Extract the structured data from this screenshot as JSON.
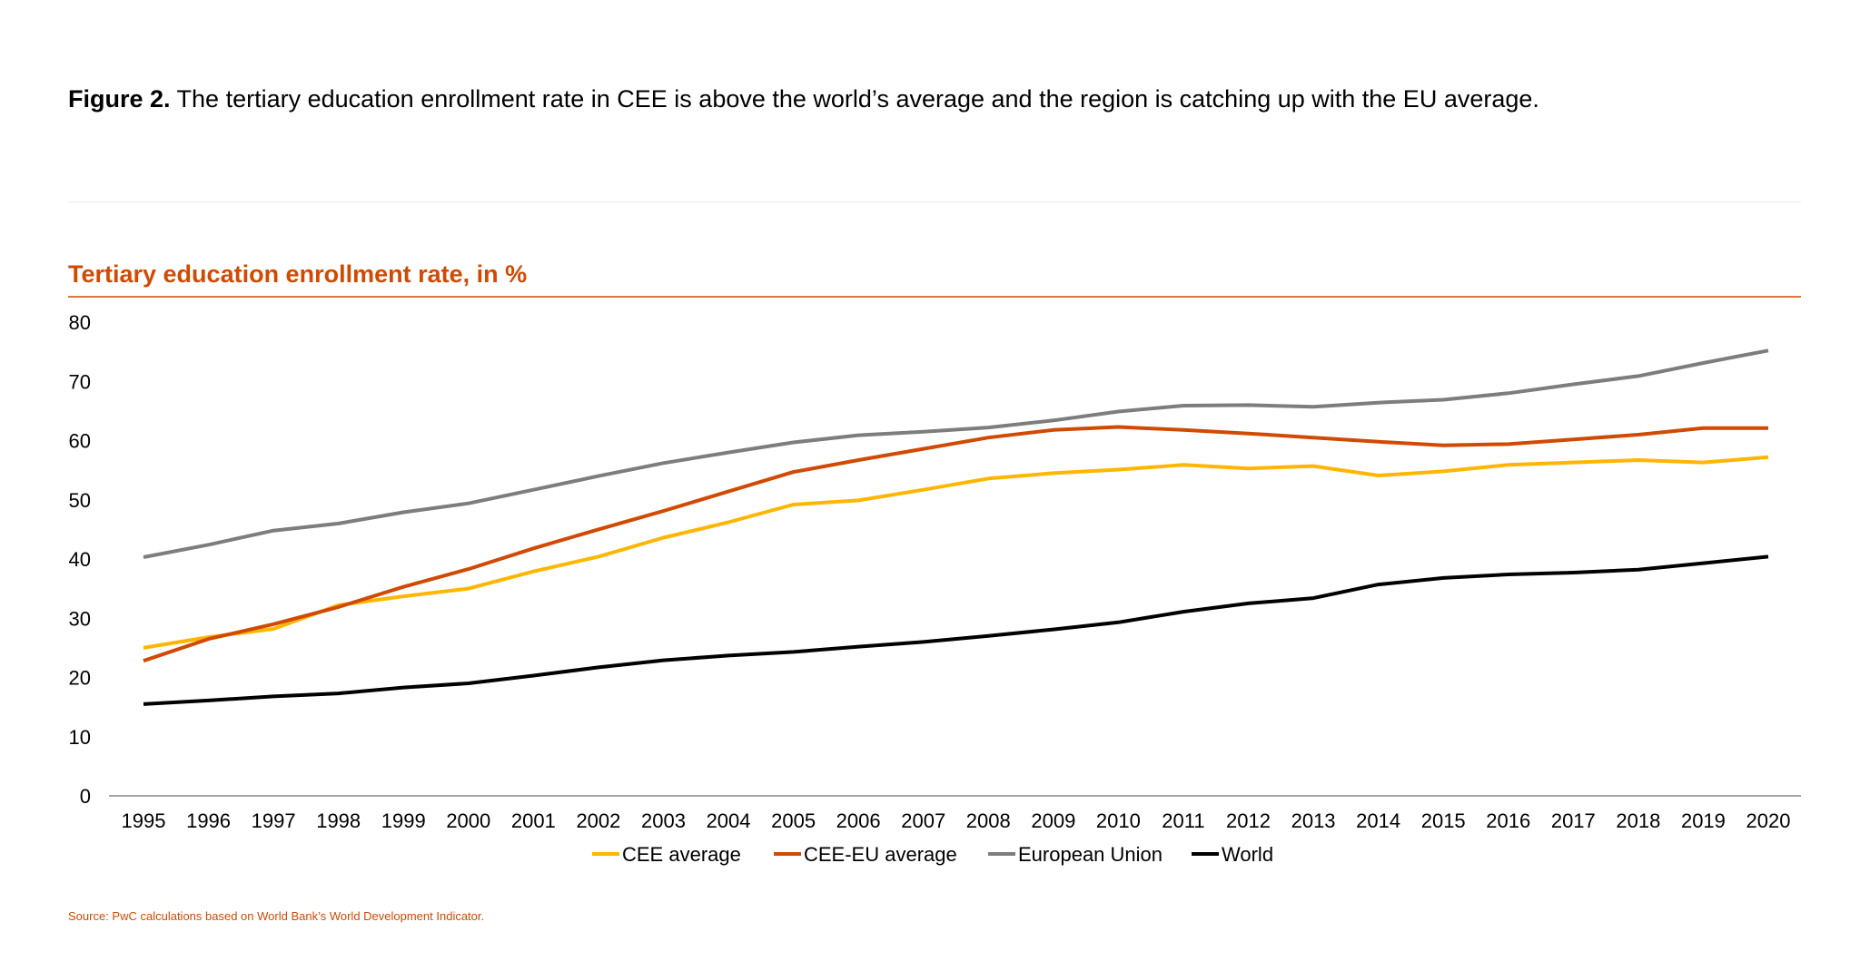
{
  "figure": {
    "label": "Figure 2.",
    "caption": "The tertiary education enrollment rate in CEE is above the world’s average and the region is catching up with the EU average."
  },
  "source": "Source: PwC calculations based on World Bank’s World Development Indicator.",
  "chart_data": {
    "type": "line",
    "title": "Tertiary education enrollment rate, in %",
    "xlabel": "",
    "ylabel": "",
    "ylim": [
      0,
      80
    ],
    "yticks": [
      0,
      10,
      20,
      30,
      40,
      50,
      60,
      70,
      80
    ],
    "grid": false,
    "legend": "bottom",
    "x": [
      1995,
      1996,
      1997,
      1998,
      1999,
      2000,
      2001,
      2002,
      2003,
      2004,
      2005,
      2006,
      2007,
      2008,
      2009,
      2010,
      2011,
      2012,
      2013,
      2014,
      2015,
      2016,
      2017,
      2018,
      2019,
      2020
    ],
    "series": [
      {
        "name": "CEE average",
        "color": "#ffb600",
        "values": [
          25,
          26.8,
          28.2,
          32.2,
          33.7,
          35,
          37.9,
          40.4,
          43.6,
          46.2,
          49.2,
          49.9,
          51.7,
          53.6,
          54.5,
          55.1,
          55.9,
          55.3,
          55.7,
          54.1,
          54.8,
          55.9,
          56.3,
          56.7,
          56.3,
          57.2
        ]
      },
      {
        "name": "CEE-EU average",
        "color": "#d04a02",
        "values": [
          22.8,
          26.5,
          29,
          31.9,
          35.3,
          38.3,
          41.8,
          45,
          48.1,
          51.4,
          54.7,
          56.7,
          58.6,
          60.5,
          61.8,
          62.3,
          61.8,
          61.2,
          60.5,
          59.8,
          59.2,
          59.4,
          60.2,
          61,
          62.1,
          62.1
        ]
      },
      {
        "name": "European Union",
        "color": "#7d7d7d",
        "values": [
          40.3,
          42.4,
          44.8,
          46,
          47.9,
          49.4,
          51.7,
          54,
          56.2,
          58,
          59.7,
          60.9,
          61.5,
          62.2,
          63.4,
          64.9,
          65.9,
          66,
          65.7,
          66.4,
          66.9,
          68,
          69.5,
          70.9,
          73.1,
          75.2
        ]
      },
      {
        "name": "World",
        "color": "#000000",
        "values": [
          15.5,
          16.1,
          16.8,
          17.3,
          18.3,
          19,
          20.3,
          21.7,
          22.9,
          23.7,
          24.3,
          25.2,
          26,
          27,
          28.1,
          29.3,
          31.1,
          32.5,
          33.4,
          35.7,
          36.8,
          37.4,
          37.7,
          38.2,
          39.3,
          40.4
        ]
      }
    ]
  }
}
